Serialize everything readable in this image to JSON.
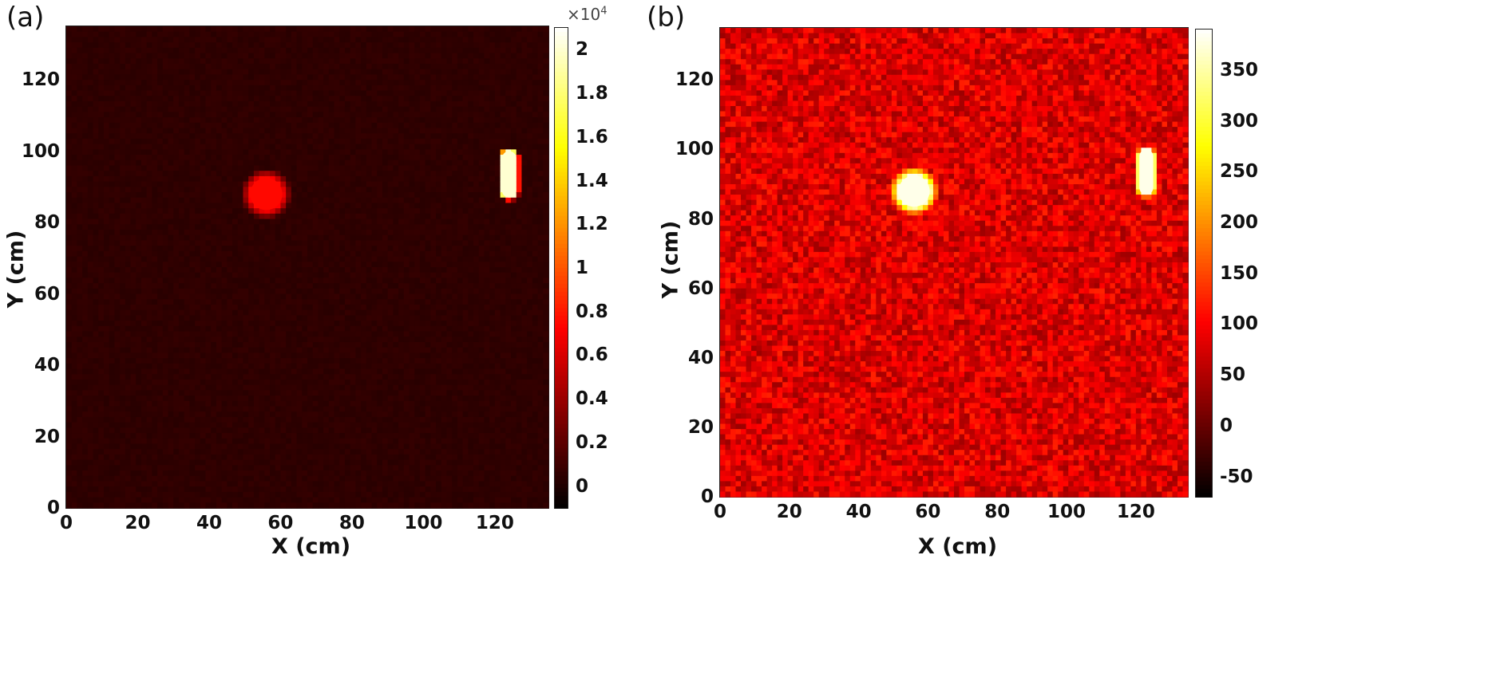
{
  "chart_data": [
    {
      "type": "heatmap",
      "panel_label": "(a)",
      "xlabel": "X (cm)",
      "ylabel": "Y (cm)",
      "xlim": [
        0,
        135
      ],
      "ylim": [
        0,
        135
      ],
      "x_ticks": [
        "0",
        "20",
        "40",
        "60",
        "80",
        "100",
        "120"
      ],
      "y_ticks": [
        "0",
        "20",
        "40",
        "60",
        "80",
        "100",
        "120"
      ],
      "colorbar": {
        "colormap": "hot",
        "multiplier": "×10",
        "multiplier_exponent": "4",
        "range": [
          -0.1,
          2.1
        ],
        "ticks": [
          "0",
          "0.2",
          "0.4",
          "0.6",
          "0.8",
          "1",
          "1.2",
          "1.4",
          "1.6",
          "1.8",
          "2"
        ]
      },
      "background_level": 0.05,
      "noise_level": 0.02,
      "sources": [
        {
          "shape": "disk",
          "x": 56,
          "y": 88,
          "radius": 4.5,
          "intensity": 0.75
        },
        {
          "shape": "rod",
          "x": 124,
          "y_from": 89,
          "y_to": 98,
          "half_width": 2,
          "intensity": 2.0
        }
      ]
    },
    {
      "type": "heatmap",
      "panel_label": "(b)",
      "xlabel": "X (cm)",
      "ylabel": "Y (cm)",
      "xlim": [
        0,
        135
      ],
      "ylim": [
        0,
        135
      ],
      "x_ticks": [
        "0",
        "20",
        "40",
        "60",
        "80",
        "100",
        "120"
      ],
      "y_ticks": [
        "0",
        "20",
        "40",
        "60",
        "80",
        "100",
        "120"
      ],
      "colorbar": {
        "colormap": "hot",
        "range": [
          -70,
          390
        ],
        "ticks": [
          "-50",
          "0",
          "50",
          "100",
          "150",
          "200",
          "250",
          "300",
          "350"
        ]
      },
      "background_level": 80,
      "noise_level": 45,
      "sources": [
        {
          "shape": "disk",
          "x": 56,
          "y": 88,
          "radius": 4.5,
          "intensity": 380
        },
        {
          "shape": "rod",
          "x": 123,
          "y_from": 89,
          "y_to": 98,
          "half_width": 2,
          "intensity": 380
        }
      ]
    }
  ]
}
